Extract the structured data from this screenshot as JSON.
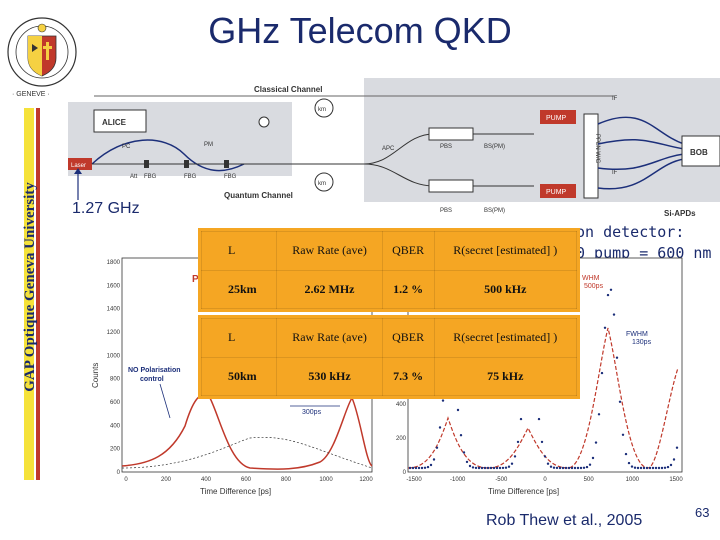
{
  "title": "GHz Telecom QKD",
  "side_text": "GAP Optique   Geneva University",
  "rate_label": "1.27 GHz",
  "diagram": {
    "classical_channel": "Classical Channel",
    "quantum_channel": "Quantum Channel",
    "alice": "ALICE",
    "bob": "BOB",
    "laser": "Laser",
    "km": "km",
    "pump": "PUMP",
    "si_apds": "Si-APDs",
    "pc": "PC",
    "pbs": "PBS",
    "bs_pm": "BS(PM)",
    "apc": "APC",
    "if": "IF",
    "fbg": "FBG",
    "ppln": "PPLN W/G",
    "pm": "PM",
    "att": "Att"
  },
  "detector_text": [
    "on detector:",
    "0 pump = 600 nm"
  ],
  "tables": [
    {
      "header": [
        "L",
        "Raw Rate (ave)",
        "QBER",
        "R(secret [estimated] )"
      ],
      "row": [
        "25km",
        "2.62 MHz",
        "1.2 %",
        "500 kHz"
      ]
    },
    {
      "header": [
        "L",
        "Raw Rate (ave)",
        "QBER",
        "R(secret [estimated] )"
      ],
      "row": [
        "50km",
        "530 kHz",
        "7.3 %",
        "75 kHz"
      ]
    }
  ],
  "left_plot": {
    "ylabel": "Counts",
    "xlabel": "Time Difference [ps]",
    "yticks": [
      "1800",
      "1600",
      "1400",
      "1200",
      "1000",
      "800",
      "600",
      "400",
      "200",
      "0"
    ],
    "xticks": [
      "0",
      "200",
      "400",
      "600",
      "800",
      "1000",
      "1200"
    ],
    "annotation": "NO Polarisation control",
    "width_label": "300ps",
    "p_label": "P"
  },
  "right_plot": {
    "xlabel": "Time Difference [ps]",
    "yticks": [
      "400",
      "200",
      "0"
    ],
    "xticks": [
      "-1500",
      "-1000",
      "-500",
      "0",
      "500",
      "1000",
      "1500"
    ],
    "fwhm_top": "WHM",
    "fwhm_top_value": "500ps",
    "fwhm_bottom": "FWHM",
    "fwhm_bottom_value": "130ps"
  },
  "credit": "Rob Thew et al., 2005",
  "page_number": "63",
  "colors": {
    "title_blue": "#1a2a6c",
    "table_orange": "#f5a623",
    "curve_red": "#c0392b",
    "dots_blue": "#1c2f7a"
  }
}
